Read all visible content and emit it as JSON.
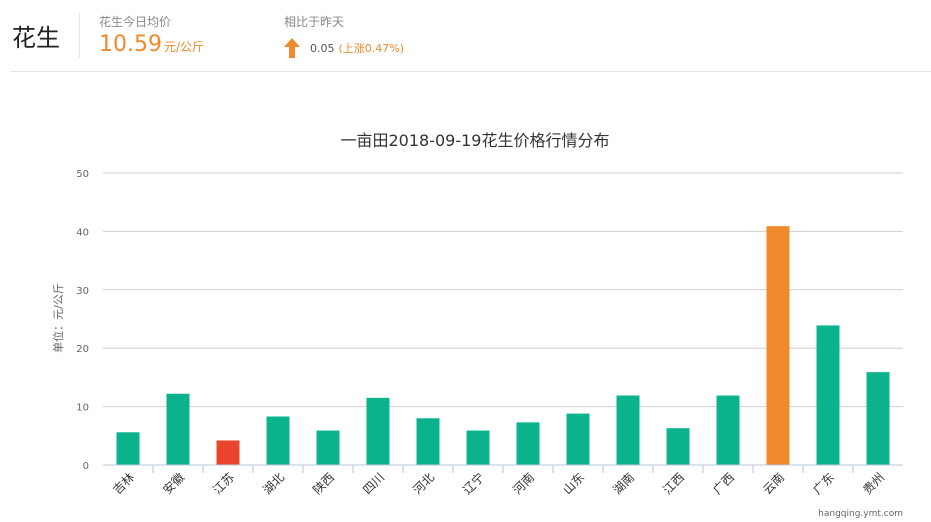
{
  "header": {
    "product": "花生",
    "avg_label": "花生今日均价",
    "avg_value": "10.59",
    "avg_unit": "元/公斤",
    "compare_label": "相比于昨天",
    "change_value": "0.05",
    "change_pct": "(上涨0.47%)",
    "trend": "up"
  },
  "colors": {
    "bar": "#0bb38c",
    "low": "#e8452c",
    "high": "#f08a2c",
    "accent": "#f08a2c"
  },
  "chart_data": {
    "type": "bar",
    "title": "一亩田2018-09-19花生价格行情分布",
    "ylabel": "单位：元/公斤",
    "xlabel": "",
    "ylim": [
      0,
      50
    ],
    "yticks": [
      "0",
      "10",
      "20",
      "30",
      "40",
      "50"
    ],
    "grid": true,
    "categories": [
      "吉林",
      "安徽",
      "江苏",
      "湖北",
      "陕西",
      "四川",
      "河北",
      "辽宁",
      "河南",
      "山东",
      "湖南",
      "江西",
      "广西",
      "云南",
      "广东",
      "贵州"
    ],
    "values": [
      5.6,
      12.2,
      4.2,
      8.3,
      5.9,
      11.5,
      8.0,
      5.9,
      7.3,
      8.8,
      11.9,
      6.3,
      11.9,
      40.9,
      23.9,
      15.9
    ],
    "highlight_min": "江苏",
    "highlight_max": "云南"
  },
  "watermark": "hangqing.ymt.com"
}
